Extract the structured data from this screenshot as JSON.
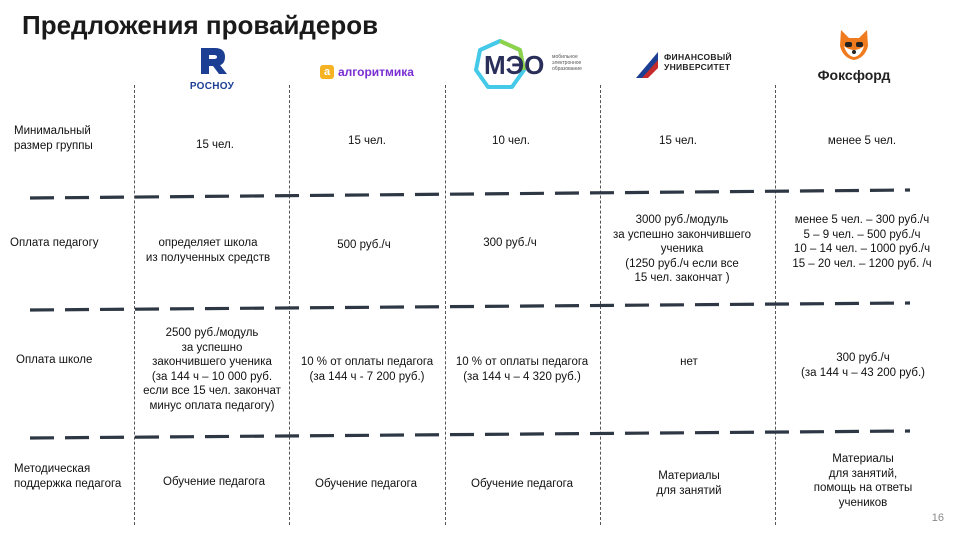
{
  "title": "Предложения провайдеров",
  "page_number": "16",
  "providers": {
    "rosnou": {
      "name": "РОСНОУ"
    },
    "algoritmika": {
      "badge": "а",
      "name": "алгоритмика"
    },
    "meo": {
      "name": "МЭО",
      "tagline": "мобильное\nэлектронное\nобразование"
    },
    "finu": {
      "name": "ФИНАНСОВЫЙ\nУНИВЕРСИТЕТ"
    },
    "foxford": {
      "name": "Фоксфорд"
    }
  },
  "rows": [
    {
      "label": "Минимальный\nразмер группы",
      "cells": [
        "15 чел.",
        "15 чел.",
        "10 чел.",
        "15 чел.",
        "менее 5 чел."
      ]
    },
    {
      "label": "Оплата педагогу",
      "cells": [
        "определяет школа\nиз полученных средств",
        "500 руб./ч",
        "300 руб./ч",
        "3000 руб./модуль\nза успешно закончившего\nученика\n(1250 руб./ч  если все\n15 чел. закончат )",
        "менее 5 чел. – 300 руб./ч\n5 – 9 чел. – 500 руб./ч\n10 – 14 чел. – 1000 руб./ч\n15 – 20 чел. – 1200 руб. /ч"
      ]
    },
    {
      "label": "Оплата школе",
      "cells": [
        "2500 руб./модуль\nза успешно\nзакончившего ученика\n(за 144 ч – 10 000 руб.\nесли все 15 чел. закончат\nминус оплата педагогу)",
        "10 % от оплаты педагога\n(за 144 ч - 7 200 руб.)",
        "10 % от оплаты педагога\n(за 144 ч – 4 320 руб.)",
        "нет",
        "300 руб./ч\n(за 144 ч – 43 200 руб.)"
      ]
    },
    {
      "label": "Методическая\nподдержка педагога",
      "cells": [
        "Обучение педагога",
        "Обучение педагога",
        "Обучение педагога",
        "Материалы\nдля занятий",
        "Материалы\nдля занятий,\nпомощь на ответы\nучеников"
      ]
    }
  ]
}
